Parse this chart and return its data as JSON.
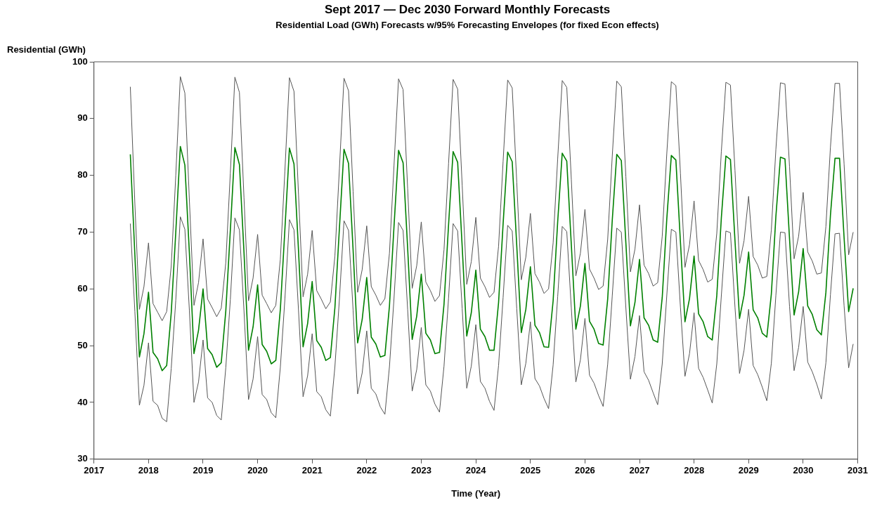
{
  "chart_data": {
    "type": "line",
    "title": "Sept 2017 — Dec 2030 Forward Monthly Forecasts",
    "subtitle": "Residential Load (GWh) Forecasts w/95% Forecasting Envelopes (for fixed Econ effects)",
    "xlabel": "Time (Year)",
    "ylabel": "Residential (GWh)",
    "x": [
      "2017-09",
      "2017-10",
      "2017-11",
      "2017-12",
      "2018-01",
      "2018-02",
      "2018-03",
      "2018-04",
      "2018-05",
      "2018-06",
      "2018-07",
      "2018-08",
      "2018-09",
      "2018-10",
      "2018-11",
      "2018-12",
      "2019-01",
      "2019-02",
      "2019-03",
      "2019-04",
      "2019-05",
      "2019-06",
      "2019-07",
      "2019-08",
      "2019-09",
      "2019-10",
      "2019-11",
      "2019-12",
      "2020-01",
      "2020-02",
      "2020-03",
      "2020-04",
      "2020-05",
      "2020-06",
      "2020-07",
      "2020-08",
      "2020-09",
      "2020-10",
      "2020-11",
      "2020-12",
      "2021-01",
      "2021-02",
      "2021-03",
      "2021-04",
      "2021-05",
      "2021-06",
      "2021-07",
      "2021-08",
      "2021-09",
      "2021-10",
      "2021-11",
      "2021-12",
      "2022-01",
      "2022-02",
      "2022-03",
      "2022-04",
      "2022-05",
      "2022-06",
      "2022-07",
      "2022-08",
      "2022-09",
      "2022-10",
      "2022-11",
      "2022-12",
      "2023-01",
      "2023-02",
      "2023-03",
      "2023-04",
      "2023-05",
      "2023-06",
      "2023-07",
      "2023-08",
      "2023-09",
      "2023-10",
      "2023-11",
      "2023-12",
      "2024-01",
      "2024-02",
      "2024-03",
      "2024-04",
      "2024-05",
      "2024-06",
      "2024-07",
      "2024-08",
      "2024-09",
      "2024-10",
      "2024-11",
      "2024-12",
      "2025-01",
      "2025-02",
      "2025-03",
      "2025-04",
      "2025-05",
      "2025-06",
      "2025-07",
      "2025-08",
      "2025-09",
      "2025-10",
      "2025-11",
      "2025-12",
      "2026-01",
      "2026-02",
      "2026-03",
      "2026-04",
      "2026-05",
      "2026-06",
      "2026-07",
      "2026-08",
      "2026-09",
      "2026-10",
      "2026-11",
      "2026-12",
      "2027-01",
      "2027-02",
      "2027-03",
      "2027-04",
      "2027-05",
      "2027-06",
      "2027-07",
      "2027-08",
      "2027-09",
      "2027-10",
      "2027-11",
      "2027-12",
      "2028-01",
      "2028-02",
      "2028-03",
      "2028-04",
      "2028-05",
      "2028-06",
      "2028-07",
      "2028-08",
      "2028-09",
      "2028-10",
      "2028-11",
      "2028-12",
      "2029-01",
      "2029-02",
      "2029-03",
      "2029-04",
      "2029-05",
      "2029-06",
      "2029-07",
      "2029-08",
      "2029-09",
      "2029-10",
      "2029-11",
      "2029-12",
      "2030-01",
      "2030-02",
      "2030-03",
      "2030-04",
      "2030-05",
      "2030-06",
      "2030-07",
      "2030-08",
      "2030-09",
      "2030-10",
      "2030-11",
      "2030-12"
    ],
    "series": [
      {
        "color": "#555555",
        "values": [
          95.6,
          75.0,
          56.4,
          60.4,
          68.1,
          57.4,
          55.9,
          54.4,
          56.0,
          64.0,
          80.0,
          97.4,
          94.5,
          75.5,
          57.1,
          61.1,
          68.8,
          58.2,
          56.7,
          55.1,
          56.6,
          64.6,
          80.4,
          97.3,
          94.6,
          76.1,
          57.9,
          61.9,
          69.6,
          58.9,
          57.4,
          55.8,
          57.1,
          65.2,
          80.8,
          97.2,
          94.8,
          76.6,
          58.6,
          62.6,
          70.3,
          59.7,
          58.2,
          56.5,
          57.7,
          65.8,
          81.3,
          97.1,
          94.9,
          77.2,
          59.4,
          63.4,
          71.1,
          60.4,
          58.9,
          57.1,
          58.3,
          66.3,
          81.7,
          97.0,
          95.1,
          77.7,
          60.1,
          64.1,
          71.8,
          61.2,
          59.7,
          57.8,
          58.8,
          66.9,
          82.1,
          96.9,
          95.2,
          78.2,
          60.8,
          64.8,
          72.6,
          61.9,
          60.4,
          58.5,
          59.4,
          67.5,
          82.5,
          96.8,
          95.4,
          78.8,
          61.6,
          65.6,
          73.3,
          62.7,
          61.2,
          59.2,
          60.0,
          68.1,
          82.9,
          96.7,
          95.5,
          79.3,
          62.3,
          66.3,
          74.0,
          63.5,
          61.9,
          59.9,
          60.5,
          68.7,
          83.3,
          96.6,
          95.6,
          79.8,
          63.0,
          67.0,
          74.8,
          64.2,
          62.7,
          60.5,
          61.1,
          69.3,
          83.8,
          96.5,
          95.8,
          80.4,
          63.8,
          67.8,
          75.5,
          65.0,
          63.4,
          61.2,
          61.7,
          69.8,
          84.2,
          96.4,
          95.9,
          80.9,
          64.5,
          68.5,
          76.3,
          65.7,
          64.2,
          61.9,
          62.2,
          70.4,
          84.6,
          96.3,
          96.1,
          81.5,
          65.3,
          69.3,
          77.0,
          66.5,
          64.9,
          62.6,
          62.8,
          71.0,
          85.0,
          96.2,
          96.2,
          82.0,
          66.0,
          70.0
        ]
      },
      {
        "color": "#555555",
        "values": [
          71.5,
          56.0,
          39.5,
          43.0,
          50.5,
          40.2,
          39.5,
          37.2,
          36.6,
          46.0,
          58.0,
          72.7,
          70.5,
          56.1,
          40.0,
          43.6,
          51.0,
          40.8,
          40.0,
          37.7,
          36.9,
          46.1,
          58.1,
          72.5,
          70.4,
          56.2,
          40.5,
          44.1,
          51.6,
          41.4,
          40.5,
          38.2,
          37.3,
          46.2,
          58.2,
          72.2,
          70.4,
          56.2,
          41.0,
          44.7,
          52.1,
          41.9,
          41.0,
          38.7,
          37.6,
          46.3,
          58.3,
          72.0,
          70.3,
          56.3,
          41.5,
          45.2,
          52.6,
          42.5,
          41.5,
          39.2,
          37.9,
          46.3,
          58.3,
          71.7,
          70.3,
          56.4,
          42.0,
          45.8,
          53.2,
          43.1,
          42.0,
          39.7,
          38.3,
          46.4,
          58.4,
          71.5,
          70.2,
          56.5,
          42.5,
          46.4,
          53.7,
          43.7,
          42.5,
          40.2,
          38.6,
          46.5,
          58.5,
          71.2,
          70.2,
          56.5,
          43.1,
          46.9,
          54.2,
          44.2,
          42.9,
          40.7,
          38.9,
          46.6,
          58.6,
          71.0,
          70.1,
          56.6,
          43.6,
          47.5,
          54.8,
          44.8,
          43.4,
          41.2,
          39.3,
          46.7,
          58.7,
          70.7,
          70.0,
          56.7,
          44.1,
          48.1,
          55.3,
          45.4,
          43.9,
          41.7,
          39.6,
          46.8,
          58.8,
          70.5,
          70.0,
          56.8,
          44.6,
          48.6,
          55.8,
          46.0,
          44.4,
          42.2,
          39.9,
          46.8,
          58.8,
          70.2,
          69.9,
          56.8,
          45.1,
          49.2,
          56.4,
          46.5,
          44.9,
          42.7,
          40.3,
          46.9,
          58.9,
          70.0,
          69.9,
          56.9,
          45.6,
          49.7,
          56.9,
          47.1,
          45.4,
          43.2,
          40.6,
          47.0,
          59.0,
          69.7,
          69.8,
          57.0,
          46.1,
          50.3
        ]
      },
      {
        "color": "#008000",
        "values": [
          83.7,
          66.0,
          48.0,
          52.1,
          59.4,
          48.8,
          47.7,
          45.6,
          46.5,
          55.8,
          70.0,
          85.1,
          81.8,
          66.2,
          48.6,
          52.7,
          60.0,
          49.5,
          48.4,
          46.2,
          47.0,
          56.1,
          70.3,
          84.9,
          81.9,
          66.5,
          49.2,
          53.3,
          60.7,
          50.2,
          49.0,
          46.8,
          47.4,
          56.4,
          70.5,
          84.8,
          82.0,
          66.7,
          49.8,
          53.9,
          61.3,
          50.9,
          49.7,
          47.4,
          47.9,
          56.7,
          70.8,
          84.6,
          82.1,
          66.9,
          50.5,
          54.6,
          62.0,
          51.5,
          50.3,
          48.0,
          48.3,
          57.0,
          71.0,
          84.4,
          82.2,
          67.2,
          51.1,
          55.2,
          62.6,
          52.2,
          51.0,
          48.6,
          48.8,
          57.3,
          71.3,
          84.2,
          82.3,
          67.4,
          51.7,
          55.8,
          63.3,
          52.9,
          51.6,
          49.2,
          49.2,
          57.6,
          71.5,
          84.1,
          82.4,
          67.6,
          52.3,
          56.4,
          63.9,
          53.6,
          52.3,
          49.8,
          49.7,
          57.9,
          71.8,
          83.9,
          82.5,
          67.8,
          52.9,
          57.0,
          64.5,
          54.3,
          52.9,
          50.4,
          50.1,
          58.2,
          72.0,
          83.7,
          82.6,
          68.1,
          53.5,
          57.6,
          65.2,
          54.9,
          53.6,
          51.0,
          50.6,
          58.5,
          72.3,
          83.5,
          82.7,
          68.3,
          54.2,
          58.3,
          65.8,
          55.6,
          54.2,
          51.6,
          51.0,
          58.8,
          72.5,
          83.4,
          82.8,
          68.5,
          54.8,
          58.9,
          66.5,
          56.3,
          54.9,
          52.2,
          51.5,
          59.1,
          72.8,
          83.2,
          82.9,
          68.8,
          55.4,
          59.5,
          67.1,
          57.0,
          55.5,
          52.8,
          51.9,
          59.4,
          73.0,
          83.0,
          83.0,
          69.0,
          56.0,
          60.1
        ]
      }
    ],
    "xlim": [
      "2017",
      "2031"
    ],
    "xticks": [
      "2017",
      "2018",
      "2019",
      "2020",
      "2021",
      "2022",
      "2023",
      "2024",
      "2025",
      "2026",
      "2027",
      "2028",
      "2029",
      "2030",
      "2031"
    ],
    "ylim": [
      30,
      100
    ],
    "yticks": [
      30,
      40,
      50,
      60,
      70,
      80,
      90,
      100
    ],
    "grid": false,
    "legend": false,
    "marker": "none",
    "line_style": "solid"
  }
}
